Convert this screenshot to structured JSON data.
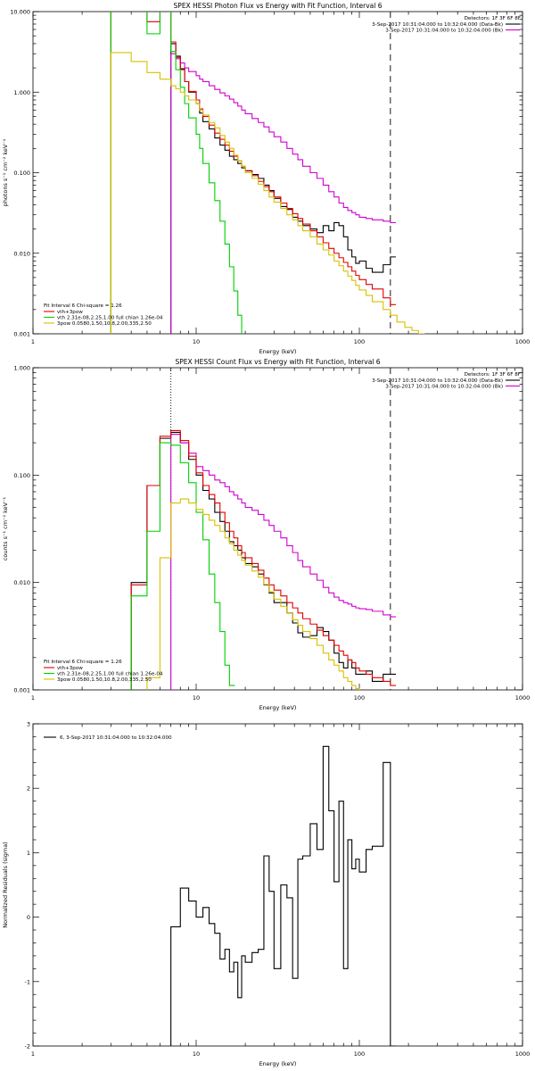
{
  "chart_data": [
    {
      "type": "line",
      "title": "SPEX HESSI Photon Flux vs Energy with Fit Function, Interval 6",
      "xlabel": "Energy (keV)",
      "ylabel": "photons s⁻¹ cm⁻² keV⁻¹",
      "x_scale": "log",
      "y_scale": "log",
      "xlim": [
        1,
        1000
      ],
      "ylim": [
        0.001,
        10
      ],
      "x_ticks": [
        "1",
        "10",
        "100",
        "1000"
      ],
      "y_ticks": [
        "0.001",
        "0.010",
        "0.100",
        "1.000",
        "10.000"
      ],
      "legend_header": [
        "Detectors: 1F 3F 6F 8F",
        "3-Sep-2017 10:31:04.000 to 10:32:04.000 (Data-Bk)",
        "3-Sep-2017 10:31:04.000 to 10:32:04.000 (Bk)"
      ],
      "fit_legend": [
        "Fit Interval 6   Chi-square = 1.26",
        "vth+3pow",
        "vth 2.31e-08,2.25,1.00  full chian 1.26e-04",
        "3pow 0.0580,1.50,10.8,2.00,335,2.50"
      ],
      "vlines": [
        {
          "x": 7,
          "style": "dotted"
        },
        {
          "x": 155,
          "style": "dashed"
        }
      ],
      "series": [
        {
          "name": "3-Sep-2017 10:31:04.000 to 10:32:04.000 (Data-Bk)",
          "color": "#000000",
          "x": [
            7,
            7.5,
            8,
            8.5,
            9,
            10,
            10.5,
            11,
            12,
            13,
            14,
            15,
            16,
            17,
            18,
            19,
            20,
            22,
            24,
            26,
            28,
            30,
            33,
            36,
            39,
            42,
            45,
            50,
            55,
            60,
            65,
            70,
            75,
            80,
            85,
            90,
            95,
            100,
            110,
            120,
            140,
            155
          ],
          "y": [
            4.0,
            2.8,
            1.95,
            1.35,
            1.0,
            0.72,
            0.55,
            0.43,
            0.35,
            0.27,
            0.22,
            0.19,
            0.16,
            0.145,
            0.13,
            0.115,
            0.105,
            0.095,
            0.085,
            0.07,
            0.06,
            0.048,
            0.038,
            0.035,
            0.028,
            0.025,
            0.022,
            0.02,
            0.018,
            0.022,
            0.019,
            0.024,
            0.022,
            0.016,
            0.011,
            0.009,
            0.0075,
            0.008,
            0.0065,
            0.0058,
            0.0072,
            0.009
          ]
        },
        {
          "name": "3-Sep-2017 10:31:04.000 to 10:32:04.000 (Bk)",
          "color": "#d000d0",
          "x": [
            7,
            7.5,
            8,
            8.5,
            9,
            10,
            10.5,
            11,
            12,
            13,
            14,
            15,
            16,
            17,
            18,
            19,
            20,
            22,
            24,
            26,
            28,
            30,
            33,
            36,
            39,
            42,
            45,
            50,
            55,
            60,
            65,
            70,
            75,
            80,
            85,
            90,
            95,
            100,
            110,
            120,
            140,
            155
          ],
          "y": [
            3.0,
            2.6,
            2.3,
            2.0,
            1.8,
            1.6,
            1.45,
            1.35,
            1.2,
            1.08,
            0.98,
            0.9,
            0.82,
            0.74,
            0.67,
            0.6,
            0.54,
            0.47,
            0.42,
            0.37,
            0.32,
            0.28,
            0.24,
            0.2,
            0.17,
            0.145,
            0.12,
            0.1,
            0.085,
            0.07,
            0.058,
            0.05,
            0.042,
            0.037,
            0.034,
            0.032,
            0.03,
            0.028,
            0.027,
            0.026,
            0.025,
            0.024
          ]
        },
        {
          "name": "vth+3pow",
          "color": "#e00000",
          "x": [
            3,
            4,
            5,
            6,
            7,
            7.5,
            8,
            8.5,
            9,
            10,
            10.5,
            11,
            12,
            13,
            14,
            15,
            16,
            17,
            18,
            19,
            20,
            22,
            24,
            26,
            28,
            30,
            33,
            36,
            39,
            42,
            45,
            50,
            55,
            60,
            65,
            70,
            75,
            80,
            85,
            90,
            95,
            100,
            110,
            120,
            140,
            155
          ],
          "y": [
            12.0,
            12.0,
            7.5,
            12.0,
            4.2,
            2.7,
            1.9,
            1.35,
            1.02,
            0.8,
            0.62,
            0.5,
            0.39,
            0.31,
            0.26,
            0.22,
            0.185,
            0.16,
            0.14,
            0.12,
            0.106,
            0.092,
            0.078,
            0.067,
            0.058,
            0.05,
            0.042,
            0.036,
            0.031,
            0.027,
            0.023,
            0.019,
            0.016,
            0.0135,
            0.0115,
            0.01,
            0.0088,
            0.0077,
            0.0068,
            0.006,
            0.0053,
            0.0047,
            0.0041,
            0.0036,
            0.0028,
            0.0023
          ]
        },
        {
          "name": "vth 2.31e-08,2.25,1.00  full chian 1.26e-04",
          "color": "#00d000",
          "x": [
            3,
            4,
            5,
            6,
            7,
            7.5,
            8,
            8.5,
            9,
            10,
            10.5,
            11,
            12,
            13,
            14,
            15,
            16,
            17,
            18,
            19,
            20
          ],
          "y": [
            12.0,
            12.0,
            5.3,
            12.0,
            3.2,
            1.9,
            1.15,
            0.72,
            0.48,
            0.3,
            0.2,
            0.13,
            0.075,
            0.045,
            0.025,
            0.013,
            0.0068,
            0.0034,
            0.0017,
            0.0009,
            0.0005
          ]
        },
        {
          "name": "3pow 0.0580,1.50,10.8,2.00,335,2.50",
          "color": "#d8c000",
          "x": [
            2.4,
            3,
            4,
            5,
            6,
            7,
            7.5,
            8,
            8.5,
            9,
            10,
            10.5,
            11,
            12,
            13,
            14,
            15,
            16,
            17,
            18,
            19,
            20,
            22,
            24,
            26,
            28,
            30,
            33,
            36,
            39,
            42,
            45,
            50,
            55,
            60,
            65,
            70,
            75,
            80,
            85,
            90,
            95,
            100,
            110,
            120,
            140,
            155,
            170,
            190,
            210,
            230,
            250
          ],
          "y": [
            0.0005,
            3.1,
            2.4,
            1.75,
            1.45,
            1.2,
            1.1,
            1.0,
            0.9,
            0.8,
            0.72,
            0.6,
            0.52,
            0.42,
            0.36,
            0.29,
            0.24,
            0.2,
            0.165,
            0.14,
            0.12,
            0.1,
            0.085,
            0.072,
            0.06,
            0.05,
            0.043,
            0.036,
            0.03,
            0.026,
            0.022,
            0.019,
            0.016,
            0.013,
            0.011,
            0.0095,
            0.008,
            0.007,
            0.006,
            0.0052,
            0.0046,
            0.004,
            0.0035,
            0.003,
            0.0025,
            0.002,
            0.0017,
            0.0014,
            0.0012,
            0.0011,
            0.001,
            0.0008
          ]
        }
      ]
    },
    {
      "type": "line",
      "title": "SPEX HESSI Count Flux vs Energy with Fit Function, Interval 6",
      "xlabel": "Energy (keV)",
      "ylabel": "counts s⁻¹ cm⁻² keV⁻¹",
      "x_scale": "log",
      "y_scale": "log",
      "xlim": [
        1,
        1000
      ],
      "ylim": [
        0.001,
        1
      ],
      "x_ticks": [
        "1",
        "10",
        "100",
        "1000"
      ],
      "y_ticks": [
        "0.001",
        "0.010",
        "0.100",
        "1.000"
      ],
      "legend_header": [
        "Detectors: 1F 3F 6F 8F",
        "3-Sep-2017 10:31:04.000 to 10:32:04.000 (Data-Bk)",
        "3-Sep-2017 10:31:04.000 to 10:32:04.000 (Bk)"
      ],
      "fit_legend": [
        "Fit Interval 6   Chi-square = 1.26",
        "vth+3pow",
        "vth 2.31e-08,2.25,1.00  full chian 1.26e-04",
        "3pow 0.0580,1.50,10.8,2.00,335,2.50"
      ],
      "vlines": [
        {
          "x": 7,
          "style": "dotted"
        },
        {
          "x": 155,
          "style": "dashed"
        }
      ],
      "series": [
        {
          "name": "3-Sep-2017 10:31:04.000 to 10:32:04.000 (Data-Bk)",
          "color": "#000000",
          "x": [
            4,
            5,
            6,
            7,
            8,
            9,
            10,
            11,
            12,
            13,
            14,
            15,
            16,
            17,
            18,
            19,
            20,
            22,
            24,
            26,
            28,
            30,
            33,
            36,
            39,
            42,
            45,
            50,
            55,
            60,
            65,
            70,
            75,
            80,
            85,
            90,
            95,
            100,
            110,
            120,
            140,
            155
          ],
          "y": [
            0.01,
            0.08,
            0.22,
            0.25,
            0.2,
            0.14,
            0.1,
            0.072,
            0.06,
            0.045,
            0.037,
            0.03,
            0.024,
            0.022,
            0.02,
            0.017,
            0.015,
            0.014,
            0.012,
            0.0095,
            0.008,
            0.0065,
            0.0065,
            0.0052,
            0.0042,
            0.0034,
            0.0031,
            0.0032,
            0.0038,
            0.0035,
            0.0029,
            0.0022,
            0.0018,
            0.0016,
            0.0019,
            0.0016,
            0.0014,
            0.0014,
            0.0015,
            0.0012,
            0.0014,
            0.0014
          ]
        },
        {
          "name": "3-Sep-2017 10:31:04.000 to 10:32:04.000 (Bk)",
          "color": "#d000d0",
          "x": [
            7,
            8,
            9,
            10,
            11,
            12,
            13,
            14,
            15,
            16,
            17,
            18,
            19,
            20,
            22,
            24,
            26,
            28,
            30,
            33,
            36,
            39,
            42,
            45,
            50,
            55,
            60,
            65,
            70,
            75,
            80,
            85,
            90,
            95,
            100,
            110,
            120,
            140,
            155
          ],
          "y": [
            0.24,
            0.2,
            0.16,
            0.12,
            0.11,
            0.1,
            0.09,
            0.085,
            0.078,
            0.07,
            0.065,
            0.06,
            0.055,
            0.05,
            0.047,
            0.043,
            0.038,
            0.034,
            0.03,
            0.026,
            0.022,
            0.019,
            0.016,
            0.014,
            0.012,
            0.0105,
            0.009,
            0.008,
            0.0073,
            0.0068,
            0.0065,
            0.0063,
            0.006,
            0.0058,
            0.0057,
            0.0056,
            0.0054,
            0.005,
            0.0048
          ]
        },
        {
          "name": "vth+3pow",
          "color": "#e00000",
          "x": [
            4,
            5,
            6,
            7,
            8,
            9,
            10,
            11,
            12,
            13,
            14,
            15,
            16,
            17,
            18,
            19,
            20,
            22,
            24,
            26,
            28,
            30,
            33,
            36,
            39,
            42,
            45,
            50,
            55,
            60,
            65,
            70,
            75,
            80,
            85,
            90,
            95,
            100,
            110,
            120,
            140,
            155
          ],
          "y": [
            0.0095,
            0.08,
            0.23,
            0.26,
            0.21,
            0.15,
            0.105,
            0.08,
            0.066,
            0.055,
            0.045,
            0.036,
            0.03,
            0.026,
            0.022,
            0.019,
            0.017,
            0.015,
            0.013,
            0.011,
            0.0095,
            0.0085,
            0.0075,
            0.0065,
            0.0058,
            0.0052,
            0.0046,
            0.0041,
            0.0036,
            0.0032,
            0.0029,
            0.0026,
            0.0023,
            0.0021,
            0.0019,
            0.0018,
            0.0016,
            0.0015,
            0.0014,
            0.0013,
            0.0012,
            0.0011
          ]
        },
        {
          "name": "vth 2.31e-08,2.25,1.00  full chian 1.26e-04",
          "color": "#00d000",
          "x": [
            4,
            5,
            6,
            7,
            8,
            9,
            10,
            11,
            12,
            13,
            14,
            15,
            16
          ],
          "y": [
            0.0075,
            0.03,
            0.2,
            0.19,
            0.13,
            0.085,
            0.045,
            0.025,
            0.012,
            0.0065,
            0.0035,
            0.0017,
            0.0011
          ]
        },
        {
          "name": "3pow 0.0580,1.50,10.8,2.00,335,2.50",
          "color": "#d8c000",
          "x": [
            5,
            6,
            7,
            8,
            9,
            10,
            11,
            12,
            13,
            14,
            15,
            16,
            17,
            18,
            19,
            20,
            22,
            24,
            26,
            28,
            30,
            33,
            36,
            39,
            42,
            45,
            50,
            55,
            60,
            65,
            70,
            75,
            80,
            85,
            90,
            95,
            100,
            110,
            120,
            140,
            155
          ],
          "y": [
            0.0013,
            0.017,
            0.055,
            0.06,
            0.055,
            0.048,
            0.043,
            0.038,
            0.034,
            0.03,
            0.026,
            0.023,
            0.02,
            0.018,
            0.016,
            0.0145,
            0.0128,
            0.0112,
            0.0096,
            0.0082,
            0.007,
            0.006,
            0.0052,
            0.0045,
            0.004,
            0.0035,
            0.003,
            0.0026,
            0.0022,
            0.0019,
            0.0017,
            0.0015,
            0.0013,
            0.0012,
            0.0011,
            0.00103,
            0.00098,
            0.00095,
            0.00092,
            0.0009,
            0.00088
          ]
        }
      ]
    },
    {
      "type": "line",
      "title": "",
      "xlabel": "Energy (keV)",
      "ylabel": "Normalized Residuals (sigma)",
      "x_scale": "log",
      "y_scale": "linear",
      "xlim": [
        1,
        1000
      ],
      "ylim": [
        -2,
        3
      ],
      "x_ticks": [
        "1",
        "10",
        "100",
        "1000"
      ],
      "y_ticks": [
        "-2",
        "-1",
        "0",
        "1",
        "2",
        "3"
      ],
      "legend": [
        "6,  3-Sep-2017 10:31:04.000 to 10:32:04.000"
      ],
      "series": [
        {
          "name": "6,  3-Sep-2017 10:31:04.000 to 10:32:04.000",
          "color": "#000000",
          "x": [
            7,
            8,
            9,
            10,
            11,
            12,
            13,
            14,
            15,
            16,
            17,
            18,
            19,
            20,
            22,
            24,
            26,
            28,
            30,
            33,
            36,
            39,
            42,
            45,
            50,
            55,
            60,
            65,
            70,
            75,
            80,
            85,
            90,
            95,
            100,
            110,
            120,
            140,
            155
          ],
          "y": [
            -0.15,
            0.45,
            0.25,
            0.0,
            0.15,
            -0.1,
            -0.25,
            -0.65,
            -0.5,
            -0.85,
            -0.7,
            -1.25,
            -0.6,
            -0.7,
            -0.55,
            -0.5,
            0.95,
            0.4,
            -0.8,
            0.5,
            0.3,
            -0.95,
            0.9,
            0.95,
            1.45,
            1.05,
            2.65,
            1.65,
            0.55,
            1.8,
            -0.8,
            1.2,
            0.75,
            0.9,
            0.7,
            1.05,
            1.1,
            2.4,
            -2.0
          ]
        }
      ]
    }
  ]
}
